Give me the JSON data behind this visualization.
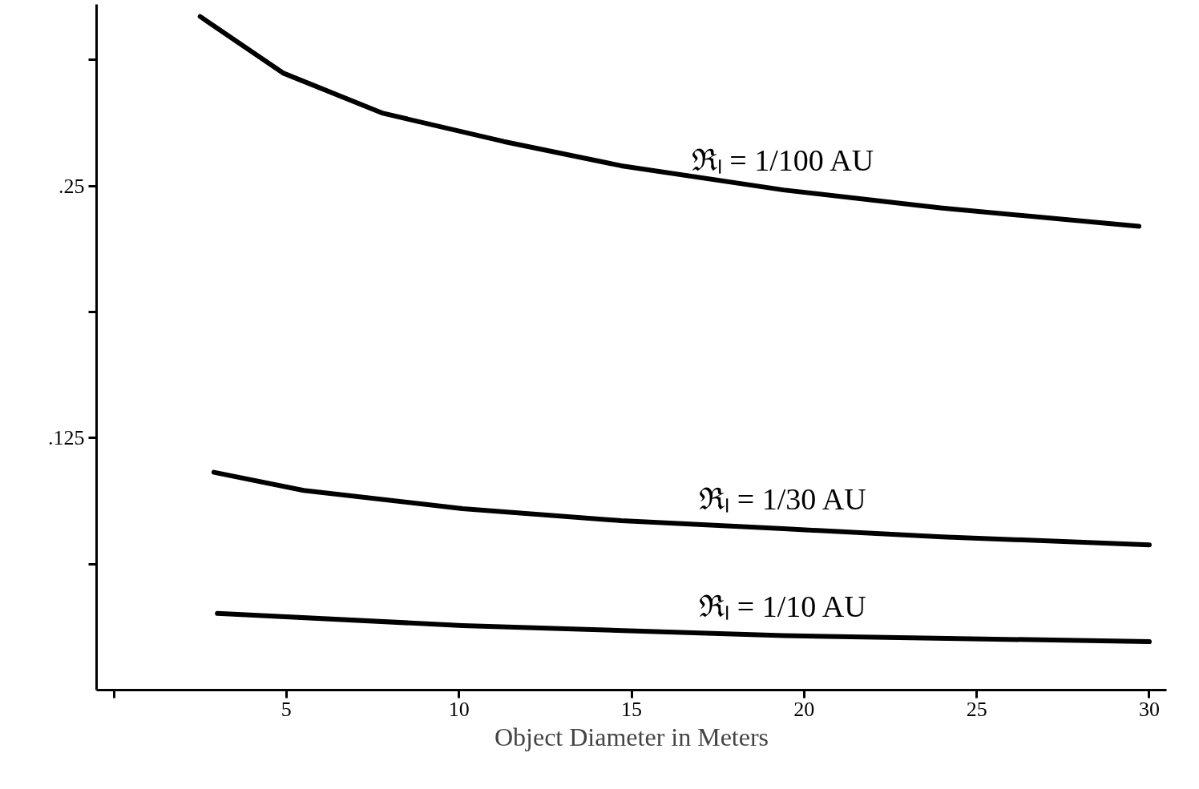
{
  "chart_data": {
    "type": "line",
    "xlabel": "Object Diameter in Meters",
    "xlim": [
      -0.5,
      30.5
    ],
    "ylim": [
      0,
      0.34
    ],
    "xticks": [
      {
        "value": 0,
        "label": null
      },
      5,
      10,
      15,
      20,
      25,
      30
    ],
    "yticks": [
      {
        "value": 0.0625,
        "label": null
      },
      {
        "value": 0.125,
        "label": ".125"
      },
      {
        "value": 0.1875,
        "label": null
      },
      {
        "value": 0.25,
        "label": ".25"
      },
      {
        "value": 0.3125,
        "label": null
      }
    ],
    "grid": false,
    "marker": "none",
    "line_style": "solid",
    "series": [
      {
        "name": "ℜₗ = 1/100 AU",
        "color": "#000000",
        "x": [
          2.5,
          4.9,
          7.8,
          11.3,
          14.7,
          19.4,
          24.0,
          29.7
        ],
        "values": [
          0.334,
          0.306,
          0.286,
          0.272,
          0.26,
          0.248,
          0.239,
          0.23
        ]
      },
      {
        "name": "ℜₗ = 1/30 AU",
        "color": "#000000",
        "x": [
          2.9,
          5.5,
          10.1,
          14.7,
          19.4,
          24.0,
          30.0
        ],
        "values": [
          0.108,
          0.099,
          0.09,
          0.084,
          0.08,
          0.076,
          0.072
        ]
      },
      {
        "name": "ℜₗ = 1/10 AU",
        "color": "#000000",
        "x": [
          3.0,
          10.1,
          19.4,
          30.0
        ],
        "values": [
          0.038,
          0.032,
          0.027,
          0.024
        ]
      }
    ]
  }
}
